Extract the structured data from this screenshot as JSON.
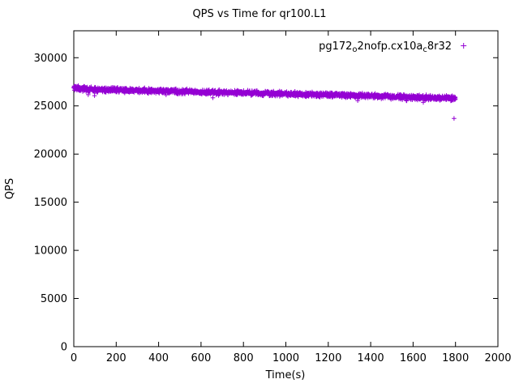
{
  "chart_data": {
    "type": "scatter",
    "title": "QPS vs Time for qr100.L1",
    "xlabel": "Time(s)",
    "ylabel": "QPS",
    "xlim": [
      0,
      2000
    ],
    "ylim": [
      0,
      32800
    ],
    "x_ticks": [
      0,
      200,
      400,
      600,
      800,
      1000,
      1200,
      1400,
      1600,
      1800,
      2000
    ],
    "y_ticks": [
      0,
      5000,
      10000,
      15000,
      20000,
      25000,
      30000
    ],
    "grid": false,
    "legend": {
      "position": "top-right-inside",
      "label": "pg172_o2nofp.cx10a_c8r32",
      "label_parts": [
        {
          "text": "pg172",
          "sub": false
        },
        {
          "text": "o",
          "sub": true
        },
        {
          "text": "2nofp.cx10a",
          "sub": false
        },
        {
          "text": "c",
          "sub": true
        },
        {
          "text": "8r32",
          "sub": false
        }
      ],
      "marker": "+"
    },
    "series": [
      {
        "name": "pg172_o2nofp.cx10a_c8r32",
        "color": "#9400d3",
        "marker": "plus",
        "x_range": [
          0,
          1800
        ],
        "sample_interval_s": 1,
        "trend": [
          [
            0,
            26900
          ],
          [
            50,
            26750
          ],
          [
            100,
            26700
          ],
          [
            200,
            26650
          ],
          [
            300,
            26600
          ],
          [
            400,
            26550
          ],
          [
            500,
            26500
          ],
          [
            600,
            26450
          ],
          [
            700,
            26400
          ],
          [
            800,
            26350
          ],
          [
            900,
            26300
          ],
          [
            1000,
            26250
          ],
          [
            1100,
            26200
          ],
          [
            1200,
            26150
          ],
          [
            1300,
            26100
          ],
          [
            1400,
            26050
          ],
          [
            1500,
            25950
          ],
          [
            1600,
            25900
          ],
          [
            1700,
            25850
          ],
          [
            1750,
            25800
          ],
          [
            1800,
            25750
          ]
        ],
        "noise_amplitude": 300,
        "outliers": [
          [
            1793,
            23700
          ]
        ]
      }
    ],
    "colors": {
      "series": "#9400d3",
      "axis": "#000000",
      "background": "#ffffff"
    }
  }
}
